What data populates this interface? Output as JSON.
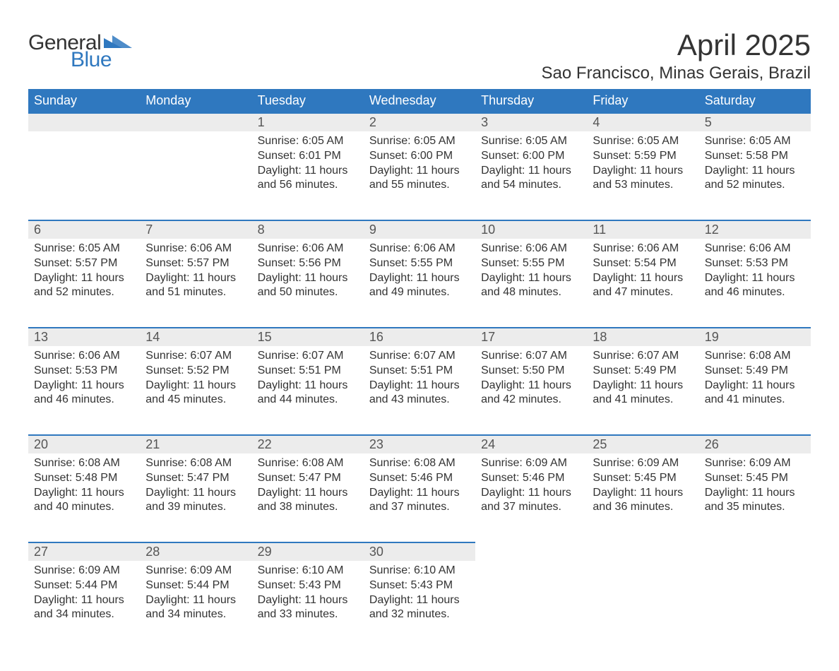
{
  "logo": {
    "word1": "General",
    "word2": "Blue",
    "tri_color": "#2f78bf"
  },
  "title": "April 2025",
  "location": "Sao Francisco, Minas Gerais, Brazil",
  "colors": {
    "header_bg": "#2f78bf",
    "header_text": "#ffffff",
    "daynum_bg": "#ececec",
    "row_border": "#2f78bf",
    "body_text": "#333333",
    "page_bg": "#ffffff"
  },
  "weekdays": [
    "Sunday",
    "Monday",
    "Tuesday",
    "Wednesday",
    "Thursday",
    "Friday",
    "Saturday"
  ],
  "weeks": [
    [
      null,
      null,
      {
        "n": "1",
        "sr": "6:05 AM",
        "ss": "6:01 PM",
        "dl": "11 hours and 56 minutes."
      },
      {
        "n": "2",
        "sr": "6:05 AM",
        "ss": "6:00 PM",
        "dl": "11 hours and 55 minutes."
      },
      {
        "n": "3",
        "sr": "6:05 AM",
        "ss": "6:00 PM",
        "dl": "11 hours and 54 minutes."
      },
      {
        "n": "4",
        "sr": "6:05 AM",
        "ss": "5:59 PM",
        "dl": "11 hours and 53 minutes."
      },
      {
        "n": "5",
        "sr": "6:05 AM",
        "ss": "5:58 PM",
        "dl": "11 hours and 52 minutes."
      }
    ],
    [
      {
        "n": "6",
        "sr": "6:05 AM",
        "ss": "5:57 PM",
        "dl": "11 hours and 52 minutes."
      },
      {
        "n": "7",
        "sr": "6:06 AM",
        "ss": "5:57 PM",
        "dl": "11 hours and 51 minutes."
      },
      {
        "n": "8",
        "sr": "6:06 AM",
        "ss": "5:56 PM",
        "dl": "11 hours and 50 minutes."
      },
      {
        "n": "9",
        "sr": "6:06 AM",
        "ss": "5:55 PM",
        "dl": "11 hours and 49 minutes."
      },
      {
        "n": "10",
        "sr": "6:06 AM",
        "ss": "5:55 PM",
        "dl": "11 hours and 48 minutes."
      },
      {
        "n": "11",
        "sr": "6:06 AM",
        "ss": "5:54 PM",
        "dl": "11 hours and 47 minutes."
      },
      {
        "n": "12",
        "sr": "6:06 AM",
        "ss": "5:53 PM",
        "dl": "11 hours and 46 minutes."
      }
    ],
    [
      {
        "n": "13",
        "sr": "6:06 AM",
        "ss": "5:53 PM",
        "dl": "11 hours and 46 minutes."
      },
      {
        "n": "14",
        "sr": "6:07 AM",
        "ss": "5:52 PM",
        "dl": "11 hours and 45 minutes."
      },
      {
        "n": "15",
        "sr": "6:07 AM",
        "ss": "5:51 PM",
        "dl": "11 hours and 44 minutes."
      },
      {
        "n": "16",
        "sr": "6:07 AM",
        "ss": "5:51 PM",
        "dl": "11 hours and 43 minutes."
      },
      {
        "n": "17",
        "sr": "6:07 AM",
        "ss": "5:50 PM",
        "dl": "11 hours and 42 minutes."
      },
      {
        "n": "18",
        "sr": "6:07 AM",
        "ss": "5:49 PM",
        "dl": "11 hours and 41 minutes."
      },
      {
        "n": "19",
        "sr": "6:08 AM",
        "ss": "5:49 PM",
        "dl": "11 hours and 41 minutes."
      }
    ],
    [
      {
        "n": "20",
        "sr": "6:08 AM",
        "ss": "5:48 PM",
        "dl": "11 hours and 40 minutes."
      },
      {
        "n": "21",
        "sr": "6:08 AM",
        "ss": "5:47 PM",
        "dl": "11 hours and 39 minutes."
      },
      {
        "n": "22",
        "sr": "6:08 AM",
        "ss": "5:47 PM",
        "dl": "11 hours and 38 minutes."
      },
      {
        "n": "23",
        "sr": "6:08 AM",
        "ss": "5:46 PM",
        "dl": "11 hours and 37 minutes."
      },
      {
        "n": "24",
        "sr": "6:09 AM",
        "ss": "5:46 PM",
        "dl": "11 hours and 37 minutes."
      },
      {
        "n": "25",
        "sr": "6:09 AM",
        "ss": "5:45 PM",
        "dl": "11 hours and 36 minutes."
      },
      {
        "n": "26",
        "sr": "6:09 AM",
        "ss": "5:45 PM",
        "dl": "11 hours and 35 minutes."
      }
    ],
    [
      {
        "n": "27",
        "sr": "6:09 AM",
        "ss": "5:44 PM",
        "dl": "11 hours and 34 minutes."
      },
      {
        "n": "28",
        "sr": "6:09 AM",
        "ss": "5:44 PM",
        "dl": "11 hours and 34 minutes."
      },
      {
        "n": "29",
        "sr": "6:10 AM",
        "ss": "5:43 PM",
        "dl": "11 hours and 33 minutes."
      },
      {
        "n": "30",
        "sr": "6:10 AM",
        "ss": "5:43 PM",
        "dl": "11 hours and 32 minutes."
      },
      null,
      null,
      null
    ]
  ],
  "labels": {
    "sunrise": "Sunrise: ",
    "sunset": "Sunset: ",
    "daylight": "Daylight: "
  }
}
